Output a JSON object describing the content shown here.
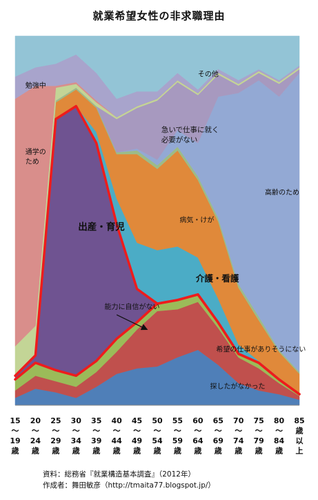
{
  "title": "就業希望女性の非求職理由",
  "credits": {
    "source": "資料：総務省『就業構造基本調査』（2012年）",
    "author": "作成者：舞田敏彦（http://tmaita77.blogspot.jp/）"
  },
  "chart_data": {
    "type": "area",
    "stacked": true,
    "normalized": true,
    "ylim": [
      0,
      100
    ],
    "grid": false,
    "legend": "none",
    "categories": [
      {
        "label": [
          "15",
          "〜",
          "19",
          "歳"
        ]
      },
      {
        "label": [
          "20",
          "〜",
          "24",
          "歳"
        ]
      },
      {
        "label": [
          "25",
          "〜",
          "29",
          "歳"
        ]
      },
      {
        "label": [
          "30",
          "〜",
          "34",
          "歳"
        ]
      },
      {
        "label": [
          "35",
          "〜",
          "39",
          "歳"
        ]
      },
      {
        "label": [
          "40",
          "〜",
          "44",
          "歳"
        ]
      },
      {
        "label": [
          "45",
          "〜",
          "49",
          "歳"
        ]
      },
      {
        "label": [
          "50",
          "〜",
          "54",
          "歳"
        ]
      },
      {
        "label": [
          "55",
          "〜",
          "59",
          "歳"
        ]
      },
      {
        "label": [
          "60",
          "〜",
          "64",
          "歳"
        ]
      },
      {
        "label": [
          "65",
          "〜",
          "69",
          "歳"
        ]
      },
      {
        "label": [
          "70",
          "〜",
          "74",
          "歳"
        ]
      },
      {
        "label": [
          "75",
          "〜",
          "79",
          "歳"
        ]
      },
      {
        "label": [
          "80",
          "〜",
          "84",
          "歳"
        ]
      },
      {
        "label": [
          "85",
          "歳",
          "以",
          "上"
        ]
      }
    ],
    "series": [
      {
        "name": "探したがなかった",
        "color": "#4f7fb8",
        "values": [
          2.0,
          4.5,
          3.5,
          2.0,
          5.0,
          8.5,
          10.0,
          10.5,
          13.0,
          15.0,
          11.0,
          6.0,
          4.0,
          3.0,
          1.5
        ]
      },
      {
        "name": "希望の仕事がありそうにない",
        "color": "#c0504d",
        "values": [
          2.0,
          3.5,
          3.0,
          3.0,
          4.0,
          6.0,
          10.5,
          15.0,
          13.0,
          13.0,
          10.0,
          7.0,
          6.0,
          3.0,
          1.0
        ]
      },
      {
        "name": "",
        "color": "#9bbb59",
        "values": [
          3.0,
          3.5,
          3.0,
          3.0,
          3.0,
          3.5,
          2.0,
          2.0,
          2.5,
          2.0,
          1.5,
          1.0,
          1.5,
          1.0,
          0.5
        ]
      },
      {
        "name": "",
        "color": "#6f5391",
        "values": [
          1.0,
          2.0,
          68.0,
          73.0,
          59.0,
          31.0,
          9.0,
          0,
          0,
          0,
          0,
          0,
          0,
          0,
          0
        ]
      },
      {
        "name": "",
        "color": "#4bacc6",
        "values": [
          0,
          0,
          0,
          0,
          3.0,
          7.0,
          12.5,
          14.5,
          14.5,
          10.0,
          6.5,
          2.5,
          0.5,
          0.5,
          0
        ]
      },
      {
        "name": "",
        "color": "#e0893a",
        "values": [
          0,
          0,
          4.5,
          4.5,
          6.5,
          12.0,
          24.0,
          22.0,
          26.0,
          21.0,
          21.0,
          15.5,
          11.0,
          7.0,
          5.5
        ]
      },
      {
        "name": "",
        "color": "#9dbb88",
        "values": [
          0,
          0,
          0.5,
          0.5,
          0.5,
          0.5,
          1.0,
          1.0,
          1.0,
          1.0,
          1.0,
          1.0,
          1.0,
          0.5,
          0.5
        ]
      },
      {
        "name": "",
        "color": "#93a9d4",
        "values": [
          0,
          0,
          0,
          0,
          0,
          0,
          0.5,
          1.5,
          4.5,
          9.0,
          33.0,
          52.0,
          64.0,
          69.0,
          81.0
        ]
      },
      {
        "name": "",
        "color": "#a799bf",
        "values": [
          0,
          0,
          0,
          0,
          0,
          9.0,
          11.0,
          16.0,
          13.0,
          13.0,
          6.0,
          2.0,
          2.0,
          3.5,
          1.0
        ]
      },
      {
        "name": "",
        "color": "#c3d596",
        "values": [
          8.0,
          8.0,
          3.5,
          1.0,
          1.0,
          0.5,
          0.5,
          0.5,
          0.5,
          0.5,
          0.5,
          0.5,
          0.5,
          0.5,
          0.5
        ]
      },
      {
        "name": "",
        "color": "#d98e8b",
        "values": [
          67.0,
          65.0,
          0.5,
          0.5,
          0.5,
          0,
          0,
          0,
          0,
          0,
          0,
          0,
          0,
          0,
          0
        ]
      },
      {
        "name": "",
        "color": "#a8a4cc",
        "values": [
          6.0,
          5.0,
          6.0,
          7.5,
          7.5,
          5.0,
          4.0,
          2.0,
          2.0,
          1.0,
          1.0,
          1.0,
          0.5,
          0.5,
          0.5
        ]
      },
      {
        "name": "その他",
        "color": "#93c4d6",
        "values": [
          11.0,
          8.5,
          7.5,
          5.0,
          10.0,
          17.0,
          15.0,
          15.0,
          10.0,
          14.5,
          9.0,
          12.0,
          9.0,
          12.0,
          8.0
        ]
      }
    ],
    "highlight_lines": [
      {
        "through_series": 3,
        "color": "#ee1c1c"
      },
      {
        "through_series": 2,
        "color": "#ee1c1c"
      }
    ],
    "annotations": [
      {
        "text": [
          "その他"
        ],
        "x": 9,
        "y": 89,
        "size": 10
      },
      {
        "text": [
          "勉強中"
        ],
        "x": 0.5,
        "y": 86,
        "size": 10
      },
      {
        "text": [
          "急いで仕事に就く",
          "必要がない"
        ],
        "x": 7.2,
        "y": 74,
        "size": 10.5
      },
      {
        "text": [
          "通学の",
          "ため"
        ],
        "x": 0.5,
        "y": 68,
        "size": 10
      },
      {
        "text": [
          "高齢のため"
        ],
        "x": 12.3,
        "y": 57,
        "size": 10
      },
      {
        "text": [
          "出産・育児"
        ],
        "x": 3.1,
        "y": 47.5,
        "size": 13.5,
        "bold": true
      },
      {
        "text": [
          "病気・けが"
        ],
        "x": 8.1,
        "y": 49.5,
        "size": 10
      },
      {
        "text": [
          "介護・看護"
        ],
        "x": 8.9,
        "y": 33.5,
        "size": 12.5,
        "bold": true
      },
      {
        "text": [
          "能力に自信がない"
        ],
        "x": 4.4,
        "y": 26,
        "size": 10
      },
      {
        "text": [
          "希望の仕事がありそうにない"
        ],
        "x": 9.9,
        "y": 14.5,
        "size": 10
      },
      {
        "text": [
          "探したがなかった"
        ],
        "x": 9.6,
        "y": 4.5,
        "size": 10
      }
    ],
    "arrow": {
      "from": [
        5.0,
        24.5
      ],
      "to": [
        6.5,
        20.5
      ]
    }
  }
}
